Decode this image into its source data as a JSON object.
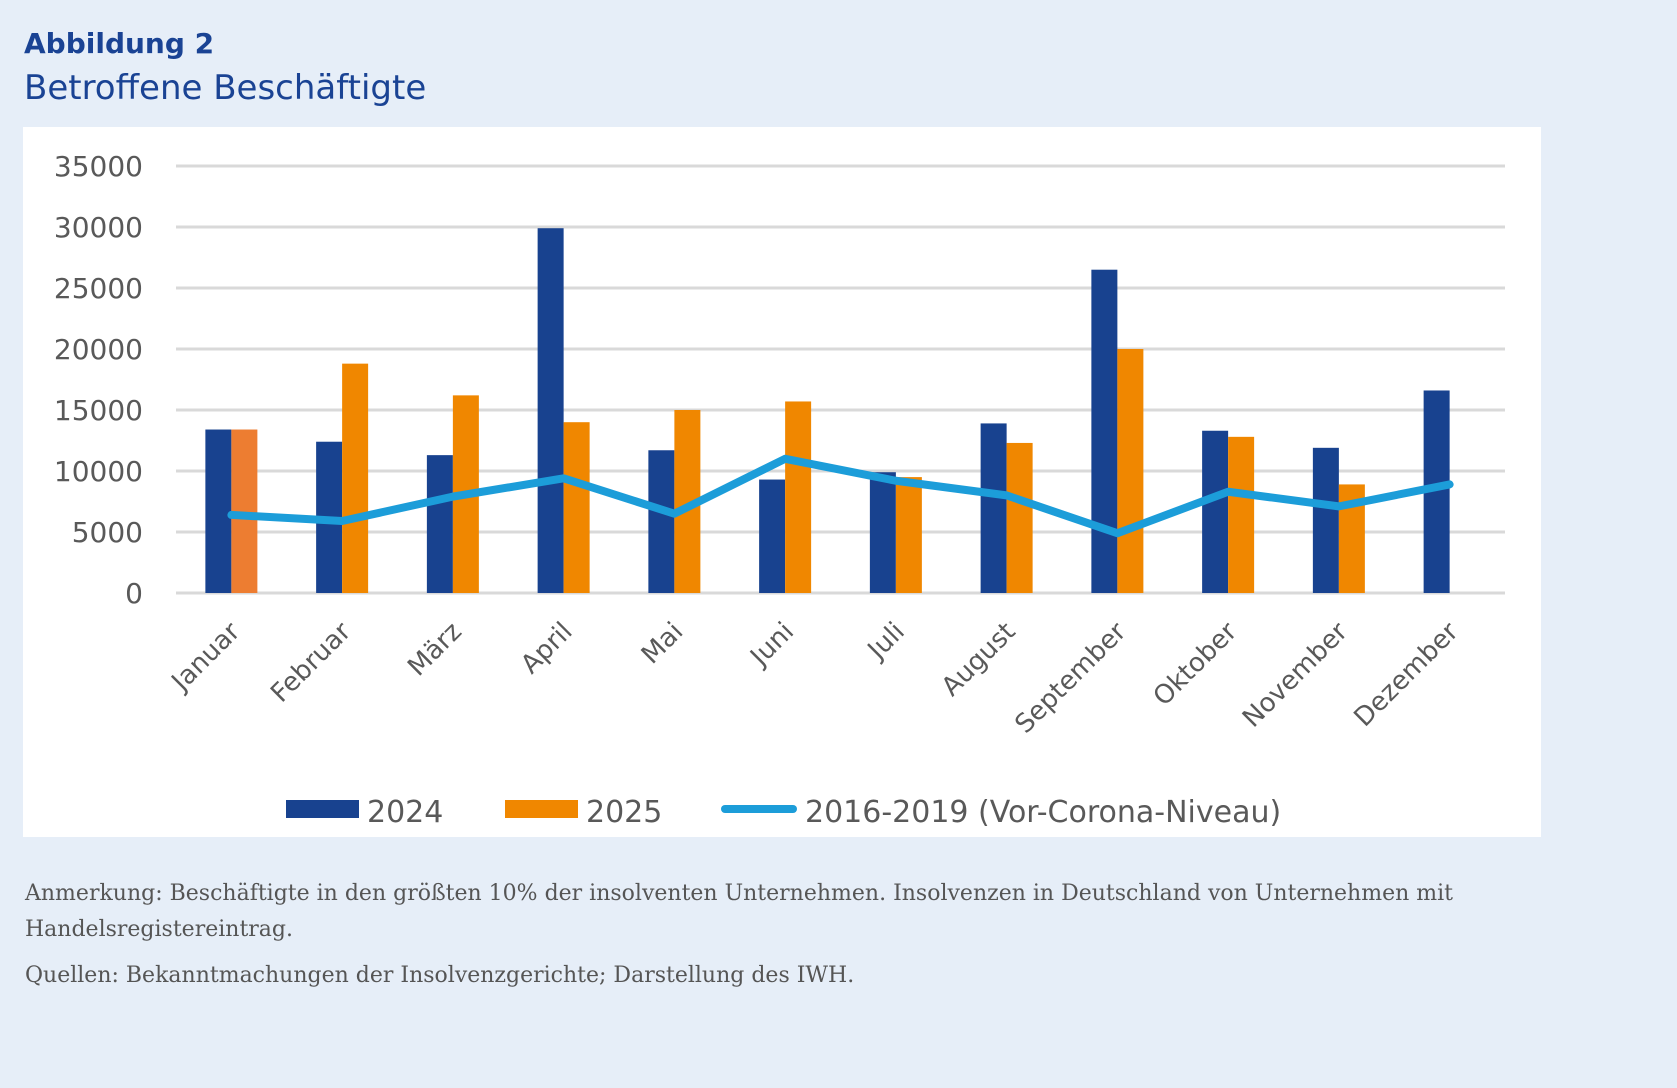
{
  "header": {
    "figure_label": "Abbildung 2",
    "title": "Betroffene Beschäftigte"
  },
  "notes": {
    "annotation": "Anmerkung: Beschäftigte in den größten 10% der insolventen Unternehmen. Insolvenzen in Deutschland von Unternehmen mit Handelsregistereintrag.",
    "sources": "Quellen: Bekanntmachungen der Insolvenzgerichte; Darstellung des IWH."
  },
  "colors": {
    "series_2024": "#18428f",
    "series_2025": "#f08700",
    "series_2025_january": "#ed7d31",
    "line_precovid": "#1c9dd9",
    "grid": "#d9d9d9",
    "text": "#595959",
    "title": "#1a4394"
  },
  "chart_data": {
    "type": "bar",
    "title": "Betroffene Beschäftigte",
    "xlabel": "",
    "ylabel": "",
    "ylim": [
      0,
      35000
    ],
    "yticks": [
      0,
      5000,
      10000,
      15000,
      20000,
      25000,
      30000,
      35000
    ],
    "ytick_labels": [
      "0",
      "5000",
      "10000",
      "15000",
      "20000",
      "25000",
      "30000",
      "35000"
    ],
    "grid": true,
    "legend_position": "bottom",
    "categories": [
      "Januar",
      "Februar",
      "März",
      "April",
      "Mai",
      "Juni",
      "Juli",
      "August",
      "September",
      "Oktober",
      "November",
      "Dezember"
    ],
    "series": [
      {
        "name": "2024",
        "type": "bar",
        "values": [
          13400,
          12400,
          11300,
          29900,
          11700,
          9300,
          9900,
          13900,
          26500,
          13300,
          11900,
          16600
        ]
      },
      {
        "name": "2025",
        "type": "bar",
        "values": [
          13400,
          18800,
          16200,
          14000,
          15000,
          15700,
          9500,
          12300,
          20000,
          12800,
          8900,
          null
        ]
      },
      {
        "name": "2016-2019 (Vor-Corona-Niveau)",
        "type": "line",
        "values": [
          6400,
          5900,
          7900,
          9400,
          6500,
          11000,
          9200,
          8000,
          4900,
          8300,
          7100,
          8900
        ]
      }
    ]
  }
}
